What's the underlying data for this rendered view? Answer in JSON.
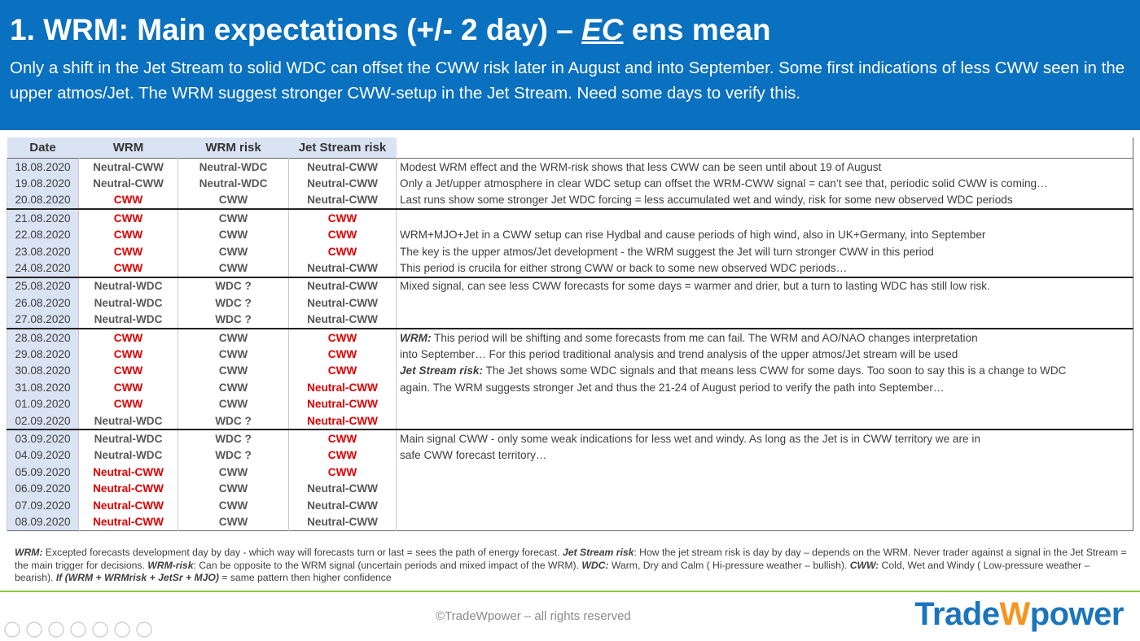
{
  "header": {
    "title": {
      "lead": "1. WRM: Main expectations (+/- 2 day) –",
      "emphasis": "EC",
      "tail": "ens mean"
    },
    "subtitle": "Only a shift in the Jet Stream to solid WDC can offset the CWW risk later in August and into September. Some first indications of less CWW seen in the upper atmos/Jet. The WRM suggest stronger CWW-setup in the Jet Stream. Need some days to verify this."
  },
  "table": {
    "columns": [
      "Date",
      "WRM",
      "WRM risk",
      "Jet Stream risk"
    ],
    "groups": [
      {
        "rows": [
          {
            "cells": [
              "18.08.2020",
              "Neutral-CWW",
              "Neutral-WDC",
              "Neutral-CWW"
            ],
            "red": [],
            "note": "Modest WRM effect and the WRM-risk shows that less CWW can be seen until about 19 of August"
          },
          {
            "cells": [
              "19.08.2020",
              "Neutral-CWW",
              "Neutral-WDC",
              "Neutral-CWW"
            ],
            "red": [],
            "note": "Only a Jet/upper atmosphere in clear WDC setup can offset the WRM-CWW signal = can’t see that, periodic solid CWW is coming…"
          },
          {
            "cells": [
              "20.08.2020",
              "CWW",
              "CWW",
              "Neutral-CWW"
            ],
            "red": [
              1
            ],
            "note": "Last runs show some stronger Jet WDC forcing = less accumulated wet and windy, risk for some new observed WDC periods"
          }
        ]
      },
      {
        "rows": [
          {
            "cells": [
              "21.08.2020",
              "CWW",
              "CWW",
              "CWW"
            ],
            "red": [
              1,
              3
            ]
          },
          {
            "cells": [
              "22.08.2020",
              "CWW",
              "CWW",
              "CWW"
            ],
            "red": [
              1,
              3
            ],
            "note": "WRM+MJO+Jet in a CWW setup can rise Hydbal and cause periods of high wind, also in UK+Germany, into September"
          },
          {
            "cells": [
              "23.08.2020",
              "CWW",
              "CWW",
              "CWW"
            ],
            "red": [
              1,
              3
            ],
            "note": "The key is the upper atmos/Jet development - the WRM suggest the Jet will turn stronger CWW in this period"
          },
          {
            "cells": [
              "24.08.2020",
              "CWW",
              "CWW",
              "Neutral-CWW"
            ],
            "red": [
              1
            ],
            "note": "This period is crucila for either strong CWW or back to some new observed WDC periods…"
          }
        ]
      },
      {
        "rows": [
          {
            "cells": [
              "25.08.2020",
              "Neutral-WDC",
              "WDC ?",
              "Neutral-CWW"
            ],
            "red": [],
            "note": "Mixed signal, can see less CWW forecasts for some days = warmer and drier, but a turn to lasting WDC has still low risk."
          },
          {
            "cells": [
              "26.08.2020",
              "Neutral-WDC",
              "WDC ?",
              "Neutral-CWW"
            ],
            "red": []
          },
          {
            "cells": [
              "27.08.2020",
              "Neutral-WDC",
              "WDC ?",
              "Neutral-CWW"
            ],
            "red": []
          }
        ]
      },
      {
        "rows": [
          {
            "cells": [
              "28.08.2020",
              "CWW",
              "CWW",
              "CWW"
            ],
            "red": [
              1,
              3
            ],
            "note": {
              "lead": "WRM:",
              "text": "This period will be shifting and some forecasts from me can fail. The WRM and AO/NAO changes interpretation"
            }
          },
          {
            "cells": [
              "29.08.2020",
              "CWW",
              "CWW",
              "CWW"
            ],
            "red": [
              1,
              3
            ],
            "note": "into September… For this period traditional analysis and trend analysis of the upper atmos/Jet stream will be used"
          },
          {
            "cells": [
              "30.08.2020",
              "CWW",
              "CWW",
              "CWW"
            ],
            "red": [
              1,
              3
            ],
            "note": {
              "lead": "Jet Stream risk:",
              "text": "The Jet shows some WDC signals and that means less CWW for some days. Too soon to say this is a change to WDC"
            }
          },
          {
            "cells": [
              "31.08.2020",
              "CWW",
              "CWW",
              "Neutral-CWW"
            ],
            "red": [
              1,
              3
            ],
            "note": "again. The WRM suggests stronger Jet and thus the 21-24 of August period to verify the path into September…"
          },
          {
            "cells": [
              "01.09.2020",
              "CWW",
              "CWW",
              "Neutral-CWW"
            ],
            "red": [
              1,
              3
            ]
          },
          {
            "cells": [
              "02.09.2020",
              "Neutral-WDC",
              "WDC ?",
              "Neutral-CWW"
            ],
            "red": [
              3
            ]
          }
        ]
      },
      {
        "rows": [
          {
            "cells": [
              "03.09.2020",
              "Neutral-WDC",
              "WDC ?",
              "CWW"
            ],
            "red": [
              3
            ],
            "note": "Main signal CWW - only some weak indications for less wet and windy. As long as the Jet is in CWW territory we are in"
          },
          {
            "cells": [
              "04.09.2020",
              "Neutral-WDC",
              "WDC ?",
              "CWW"
            ],
            "red": [
              3
            ],
            "note": "safe CWW forecast territory…"
          },
          {
            "cells": [
              "05.09.2020",
              "Neutral-CWW",
              "CWW",
              "CWW"
            ],
            "red": [
              1,
              3
            ]
          },
          {
            "cells": [
              "06.09.2020",
              "Neutral-CWW",
              "CWW",
              "Neutral-CWW"
            ],
            "red": [
              1
            ]
          },
          {
            "cells": [
              "07.09.2020",
              "Neutral-CWW",
              "CWW",
              "Neutral-CWW"
            ],
            "red": [
              1
            ]
          },
          {
            "cells": [
              "08.09.2020",
              "Neutral-CWW",
              "CWW",
              "Neutral-CWW"
            ],
            "red": [
              1
            ]
          }
        ]
      }
    ]
  },
  "footer": {
    "note": [
      {
        "text": "WRM:",
        "bold": true
      },
      {
        "text": " Excepted forecasts development day by day - which way will forecasts turn or last = sees the path of energy forecast.  "
      },
      {
        "text": "Jet Stream risk",
        "bold": true
      },
      {
        "text": ": How the jet stream risk is day by day – depends on the WRM. Never trader against a signal in the Jet Stream = the main trigger for decisions. "
      },
      {
        "text": "WRM-risk",
        "bold": true
      },
      {
        "text": ": Can be opposite to the WRM signal (uncertain periods and mixed impact of the WRM). "
      },
      {
        "text": "WDC:",
        "bold": true
      },
      {
        "text": " Warm, Dry and Calm ( Hi-pressure weather – bullish). "
      },
      {
        "text": "CWW:",
        "bold": true
      },
      {
        "text": " Cold, Wet and Windy ( Low-pressure weather – bearish). "
      },
      {
        "text": "If (WRM + WRMrisk + JetSr + MJO)",
        "bold": true
      },
      {
        "text": " = same pattern then higher confidence"
      }
    ],
    "copyright": "©TradeWpower – all rights reserved",
    "logo": [
      "Trade",
      "W",
      "power"
    ]
  }
}
